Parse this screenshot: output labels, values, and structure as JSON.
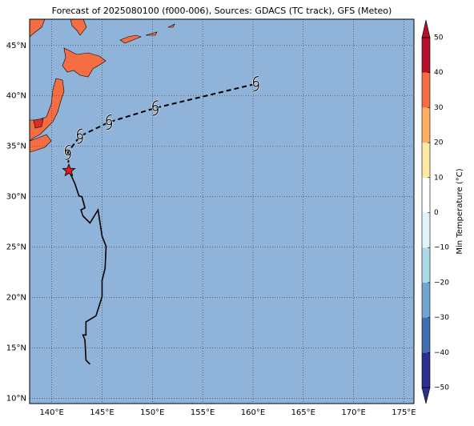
{
  "map": {
    "title": "Forecast of 2025080100 (f000-006), Sources: GDACS (TC track), GFS (Meteo)",
    "xlim": [
      137.8,
      176
    ],
    "ylim": [
      9.5,
      47.6
    ],
    "xticks": [
      {
        "value": 140,
        "label": "140°E"
      },
      {
        "value": 145,
        "label": "145°E"
      },
      {
        "value": 150,
        "label": "150°E"
      },
      {
        "value": 155,
        "label": "155°E"
      },
      {
        "value": 160,
        "label": "160°E"
      },
      {
        "value": 165,
        "label": "165°E"
      },
      {
        "value": 170,
        "label": "170°E"
      },
      {
        "value": 175,
        "label": "175°E"
      }
    ],
    "yticks": [
      {
        "value": 10,
        "label": "10°N"
      },
      {
        "value": 15,
        "label": "15°N"
      },
      {
        "value": 20,
        "label": "20°N"
      },
      {
        "value": 25,
        "label": "25°N"
      },
      {
        "value": 30,
        "label": "30°N"
      },
      {
        "value": 35,
        "label": "35°N"
      },
      {
        "value": 40,
        "label": "40°N"
      },
      {
        "value": 45,
        "label": "45°N"
      }
    ],
    "grid": true,
    "ocean_color": "#8fb3d9",
    "forecast_track": {
      "lon": [
        141.7,
        141.6,
        142.8,
        145.7,
        150.3,
        160.3
      ],
      "lat": [
        32.6,
        34.4,
        36.0,
        37.4,
        38.8,
        41.2
      ],
      "color": "#000000"
    },
    "past_track": {
      "lon": [
        141.7,
        142.3,
        142.7,
        143.0,
        143.3,
        142.9,
        143.1,
        143.8,
        144.6,
        145.0,
        145.4,
        145.3,
        145.0,
        145.0,
        144.4,
        143.4,
        143.4,
        143.1,
        143.3,
        143.4,
        143.8
      ],
      "lat": [
        32.6,
        31.3,
        30.1,
        30.0,
        28.9,
        28.7,
        28.1,
        27.4,
        28.7,
        26.1,
        25.1,
        22.9,
        21.7,
        20.1,
        18.2,
        17.6,
        16.3,
        16.3,
        15.8,
        13.8,
        13.4
      ],
      "color": "#000000"
    },
    "current_position": {
      "lon": 141.7,
      "lat": 32.6,
      "color": "#e8161c"
    },
    "colorbar": {
      "label": "Min Temperature (°C)",
      "lim": [
        -50,
        50
      ],
      "ticks": [
        {
          "value": -50,
          "label": "−50"
        },
        {
          "value": -40,
          "label": "−40"
        },
        {
          "value": -30,
          "label": "−30"
        },
        {
          "value": -20,
          "label": "−20"
        },
        {
          "value": -10,
          "label": "−10"
        },
        0,
        10,
        20,
        30,
        40,
        50
      ],
      "colors": [
        "#2b2f8f",
        "#3f6db0",
        "#6fa6cf",
        "#abd9e9",
        "#e0f3f8",
        "#ffffff",
        "#fee8a6",
        "#fdae61",
        "#f46d43",
        "#b5102a"
      ]
    }
  }
}
